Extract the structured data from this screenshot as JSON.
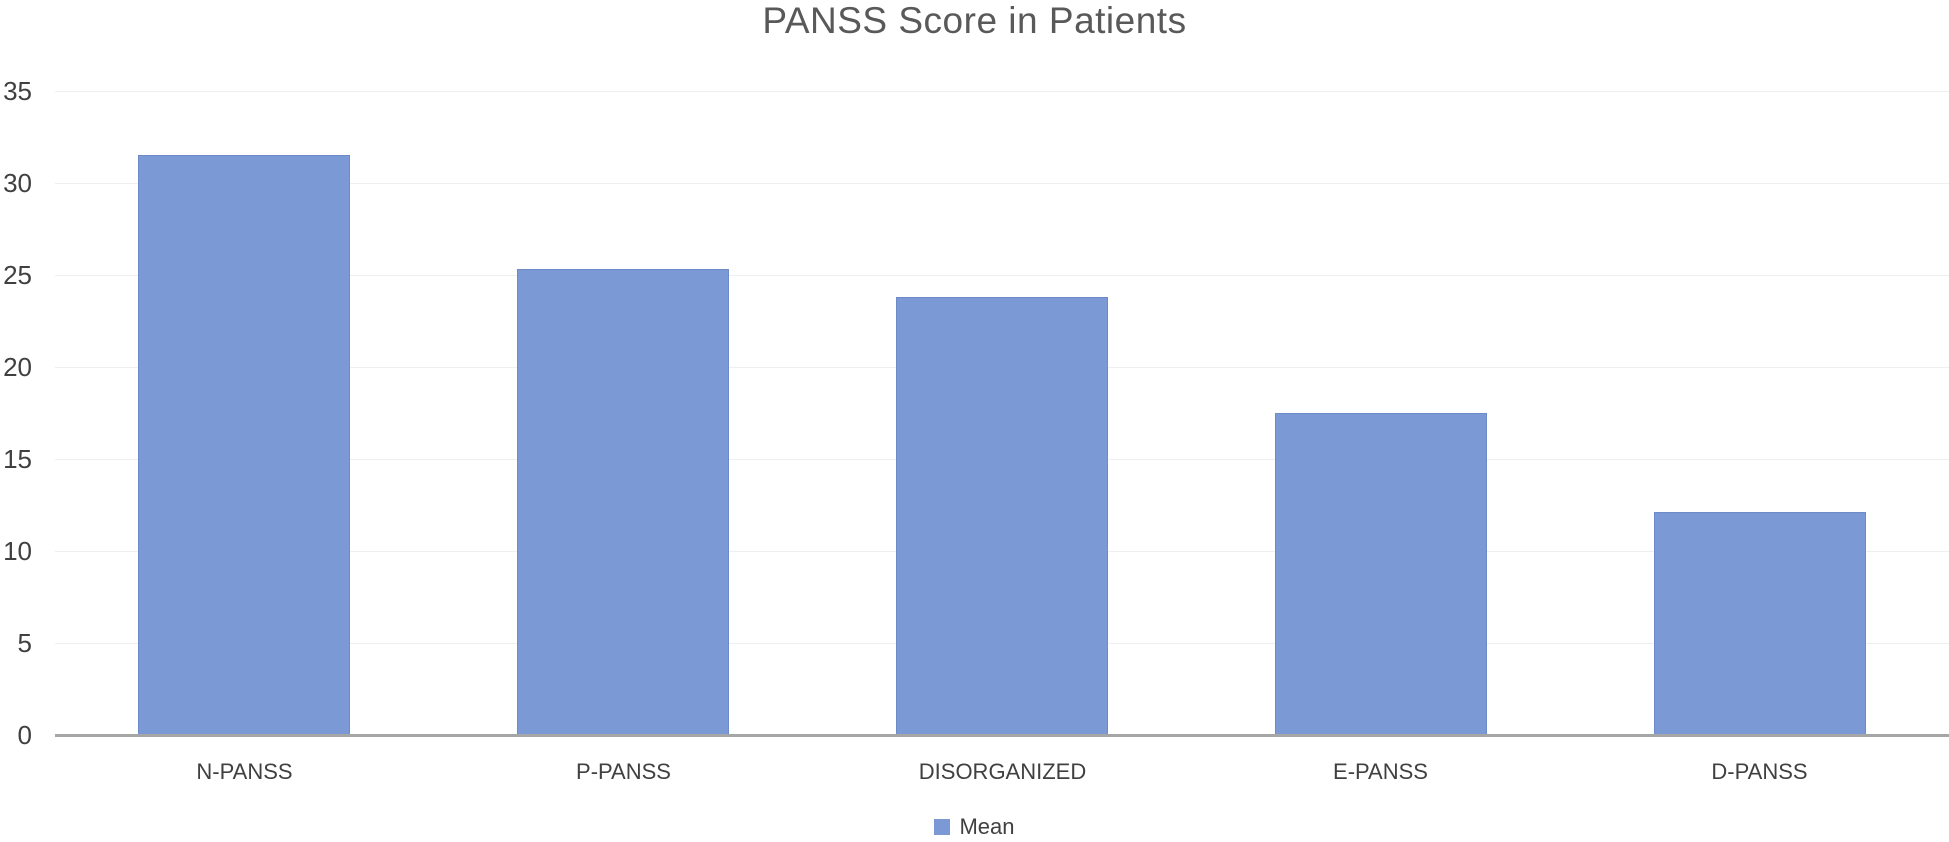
{
  "chart_data": {
    "type": "bar",
    "title": "PANSS Score in Patients",
    "categories": [
      "N-PANSS",
      "P-PANSS",
      "DISORGANIZED",
      "E-PANSS",
      "D-PANSS"
    ],
    "series": [
      {
        "name": "Mean",
        "values": [
          31.5,
          25.3,
          23.8,
          17.5,
          12.1
        ]
      }
    ],
    "xlabel": "",
    "ylabel": "",
    "ylim": [
      0,
      35
    ],
    "yticks": [
      0,
      5,
      10,
      15,
      20,
      25,
      30,
      35
    ],
    "grid": true,
    "legend_position": "bottom",
    "colors": {
      "bar_fill": "#7B99D4",
      "bar_border": "#6D8BCA",
      "gridline": "#EFEFEF",
      "axis_line": "#A6A6A6",
      "title_text": "#595959",
      "tick_text": "#404040"
    }
  }
}
